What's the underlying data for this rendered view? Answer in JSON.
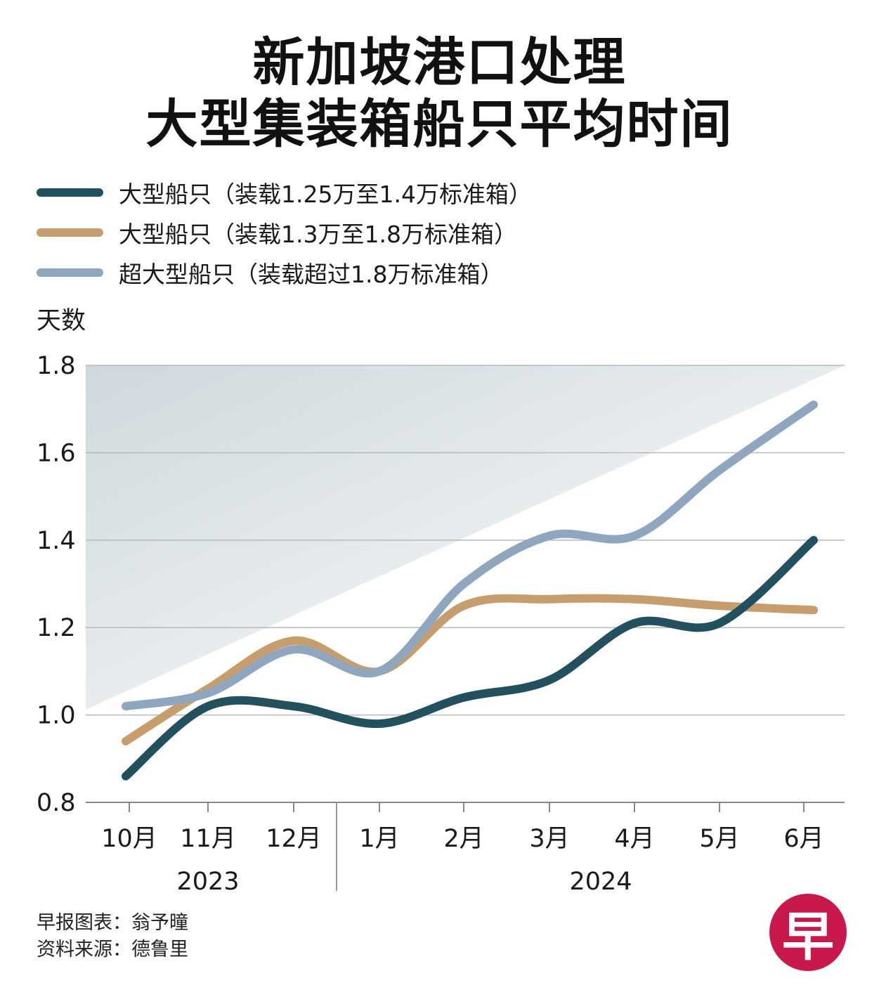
{
  "header": {
    "title_line1": "新加坡港口处理",
    "title_line2": "大型集装箱船只平均时间"
  },
  "chart_data": {
    "type": "line",
    "ylabel": "天数",
    "ylim": [
      0.8,
      1.8
    ],
    "yticks": [
      "0.8",
      "1.0",
      "1.2",
      "1.4",
      "1.6",
      "1.8"
    ],
    "categories": [
      "10月",
      "11月",
      "12月",
      "1月",
      "2月",
      "3月",
      "4月",
      "5月",
      "6月"
    ],
    "year_groups": [
      {
        "label": "2023",
        "categories": [
          "10月",
          "11月",
          "12月"
        ]
      },
      {
        "label": "2024",
        "categories": [
          "1月",
          "2月",
          "3月",
          "4月",
          "5月",
          "6月"
        ]
      }
    ],
    "grid": true,
    "legend_position": "top-left",
    "series": [
      {
        "name": "大型船只（装载1.25万至1.4万标准箱）",
        "color": "#23505f",
        "values": [
          0.86,
          1.02,
          1.02,
          0.98,
          1.04,
          1.08,
          1.21,
          1.21,
          1.4
        ]
      },
      {
        "name": "大型船只（装载1.3万至1.8万标准箱）",
        "color": "#c69e6e",
        "values": [
          0.94,
          1.06,
          1.17,
          1.1,
          1.25,
          1.265,
          1.265,
          1.25,
          1.24
        ]
      },
      {
        "name": "超大型船只（装载超过1.8万标准箱）",
        "color": "#8fa6bf",
        "values": [
          1.02,
          1.05,
          1.15,
          1.1,
          1.3,
          1.41,
          1.41,
          1.56,
          1.71
        ]
      }
    ]
  },
  "footer": {
    "credit_line1": "早报图表：翁予曈",
    "credit_line2": "资料来源：德鲁里",
    "logo_text": "早"
  }
}
